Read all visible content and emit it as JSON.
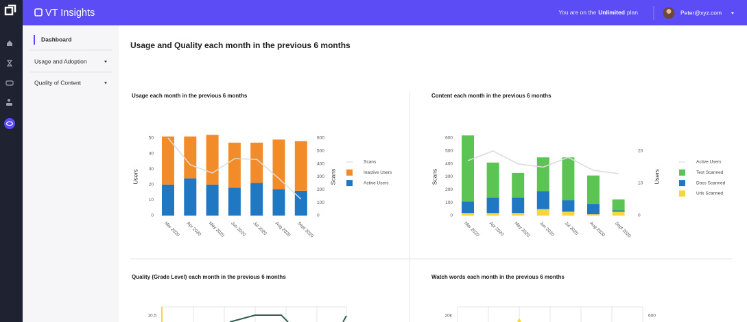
{
  "app": {
    "brand": "VT Insights",
    "plan_prefix": "You are on the",
    "plan_name": "Unlimited",
    "plan_suffix": "plan",
    "user": "Peter@xyz.com"
  },
  "nav": [
    {
      "label": "Dashboard",
      "active": true
    },
    {
      "label": "Usage and Adoption",
      "dropdown": true
    },
    {
      "label": "Quality of Content",
      "dropdown": true
    }
  ],
  "page_title": "Usage and Quality each month in the previous 6 months",
  "charts": [
    {
      "type": "stacked_bar_line",
      "title_bold": "Usage",
      "title_rest": "each month in the previous 6 months",
      "y_label": "Users",
      "y2_label": "Scans",
      "categories": [
        "Mar 2020",
        "Apr 2020",
        "May 2020",
        "Jun 2020",
        "Jul 2020",
        "Aug 2020",
        "Sept 2020"
      ],
      "ylim": [
        0,
        50
      ],
      "yticks": [
        0,
        10,
        20,
        30,
        40,
        50
      ],
      "y2lim": [
        0,
        600
      ],
      "y2ticks": [
        0,
        100,
        200,
        300,
        400,
        500,
        600
      ],
      "series": [
        {
          "name": "Scans",
          "kind": "line",
          "axis": "y2",
          "color": "#dcdcdc",
          "values": [
            600,
            393,
            329,
            440,
            435,
            287,
            127
          ]
        },
        {
          "name": "Inactive Users",
          "kind": "bar",
          "color": "#f28c2b",
          "values": [
            31,
            27,
            32,
            29,
            26,
            32,
            32
          ]
        },
        {
          "name": "Active Users",
          "kind": "bar",
          "color": "#1f78c1",
          "values": [
            20,
            24,
            20,
            18,
            21,
            17,
            16
          ]
        }
      ]
    },
    {
      "type": "stacked_bar_line",
      "title_bold": "Content",
      "title_rest": "each month in the previous 6 months",
      "y_label": "Scans",
      "y2_label": "Users",
      "categories": [
        "Mar 2020",
        "Apr 2020",
        "May 2020",
        "Jun 2020",
        "Jul 2020",
        "Aug 2020",
        "Sept 2020"
      ],
      "ylim": [
        0,
        600
      ],
      "yticks": [
        0,
        100,
        200,
        300,
        400,
        500,
        600
      ],
      "y2lim": [
        0,
        24
      ],
      "y2ticks": [
        0,
        10,
        20
      ],
      "series": [
        {
          "name": "Active Users",
          "kind": "line",
          "axis": "y2",
          "color": "#dcdcdc",
          "values": [
            17,
            20,
            16,
            15,
            18,
            14,
            13
          ]
        },
        {
          "name": "Text Scanned",
          "kind": "bar",
          "color": "#5cc453",
          "values": [
            510,
            270,
            190,
            260,
            330,
            220,
            85
          ]
        },
        {
          "name": "Docs Scanned",
          "kind": "bar",
          "color": "#1f78c1",
          "values": [
            90,
            120,
            120,
            140,
            90,
            80,
            10
          ]
        },
        {
          "name": "Urls Scanned",
          "kind": "bar",
          "color": "#f5d63d",
          "values": [
            20,
            20,
            20,
            50,
            30,
            10,
            30
          ]
        }
      ]
    },
    {
      "type": "line",
      "title_bold": "Quality (Grade Level)",
      "title_rest": "each month in the previous 6 months",
      "yticks": [
        10.5
      ]
    },
    {
      "type": "bar_line",
      "title_bold": "Watch words",
      "title_rest": "each month in the previous 6 months",
      "yticks": [
        {
          "value": 20000,
          "label": "20k"
        }
      ],
      "y2ticks": [
        600
      ]
    }
  ]
}
